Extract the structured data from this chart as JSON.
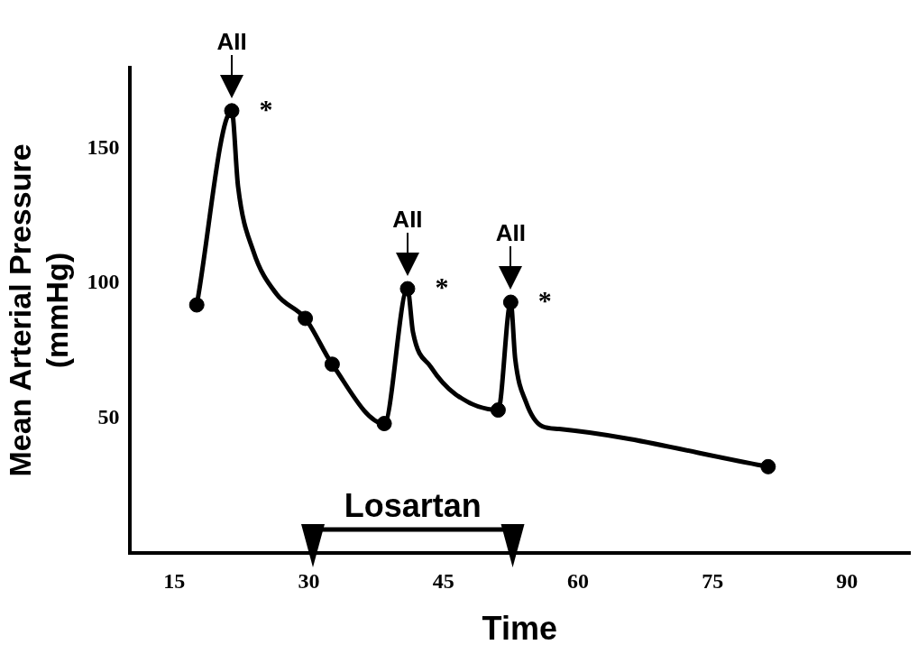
{
  "chart_data": {
    "type": "line",
    "xlabel": "Time",
    "ylabel": "Mean Arterial Pressure\n(mmHg)",
    "xlim": [
      10,
      97
    ],
    "xticks": [
      15,
      30,
      45,
      60,
      75,
      90
    ],
    "ylim": [
      0,
      180
    ],
    "yticks": [
      50,
      100,
      150
    ],
    "grid": false,
    "legend": false,
    "series": [
      {
        "color": "#000000",
        "marker": "none",
        "x": [
          17.5,
          21.4,
          22.1,
          23.8,
          26.4,
          29.6,
          32.6,
          38.4,
          41.0,
          41.6,
          43.6,
          46.3,
          51.1,
          52.5,
          53.0,
          54.2,
          56.0,
          57.9,
          81.2
        ],
        "values": [
          92,
          164,
          136,
          112,
          96,
          87,
          70,
          48,
          98,
          82,
          69,
          59,
          53,
          93,
          72,
          56,
          47,
          46,
          32
        ]
      },
      {
        "type": "scatter",
        "color": "#000000",
        "marker": "circle",
        "x": [
          17.5,
          21.4,
          29.6,
          32.6,
          38.4,
          41.0,
          51.1,
          52.5,
          81.2
        ],
        "values": [
          92,
          164,
          87,
          70,
          48,
          98,
          53,
          93,
          32
        ]
      }
    ],
    "annotations": [
      {
        "text": "AII",
        "x": 21.4,
        "y": 164
      },
      {
        "text": "AII",
        "x": 41.0,
        "y": 98
      },
      {
        "text": "AII",
        "x": 52.5,
        "y": 93
      },
      {
        "text": "*",
        "x": 21.4,
        "y": 164
      },
      {
        "text": "*",
        "x": 41.0,
        "y": 98
      },
      {
        "text": "*",
        "x": 52.5,
        "y": 93
      },
      "Losartan"
    ]
  }
}
